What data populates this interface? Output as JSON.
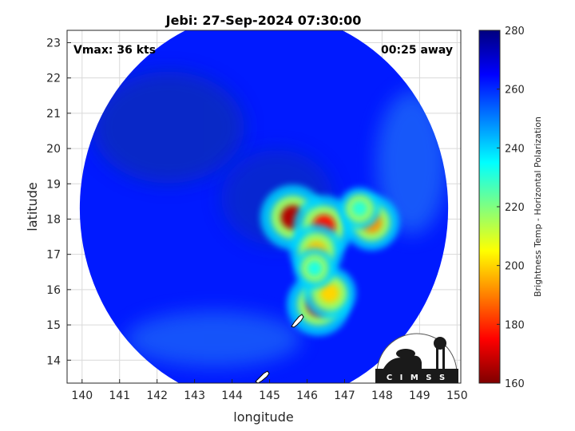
{
  "chart_data": {
    "type": "heatmap",
    "title": "Jebi: 27-Sep-2024 07:30:00",
    "xlabel": "longitude",
    "ylabel": "latitude",
    "xlim": [
      139.6,
      150.1
    ],
    "ylim": [
      13.35,
      23.35
    ],
    "xticks": [
      140,
      141,
      142,
      143,
      144,
      145,
      146,
      147,
      148,
      149,
      150
    ],
    "yticks": [
      14,
      15,
      16,
      17,
      18,
      19,
      20,
      21,
      22,
      23
    ],
    "grid": true,
    "annotations": {
      "vmax": "Vmax: 36 kts",
      "away": "00:25 away"
    },
    "swath": {
      "center": [
        144.85,
        18.3
      ],
      "radius_deg": 5.55,
      "background_value": 262
    },
    "cells": [
      {
        "lon": 145.62,
        "lat": 18.05,
        "value": 166
      },
      {
        "lon": 146.45,
        "lat": 17.8,
        "value": 176
      },
      {
        "lon": 147.72,
        "lat": 17.9,
        "value": 192
      },
      {
        "lon": 146.25,
        "lat": 17.1,
        "value": 198
      },
      {
        "lon": 146.3,
        "lat": 15.58,
        "value": 172
      },
      {
        "lon": 146.6,
        "lat": 15.9,
        "value": 200
      },
      {
        "lon": 146.2,
        "lat": 16.6,
        "value": 232
      },
      {
        "lon": 147.4,
        "lat": 18.3,
        "value": 230
      }
    ],
    "colorbar": {
      "label": "Brightness Temp - Horizontal Polarization",
      "min": 160,
      "max": 280,
      "ticks": [
        160,
        180,
        200,
        220,
        240,
        260,
        280
      ],
      "colormap": [
        "#7f0000",
        "#ff0000",
        "#ff8000",
        "#ffff00",
        "#80ff80",
        "#00ffff",
        "#0080ff",
        "#0000ff",
        "#00007f"
      ]
    },
    "logo": "C I M S S"
  }
}
